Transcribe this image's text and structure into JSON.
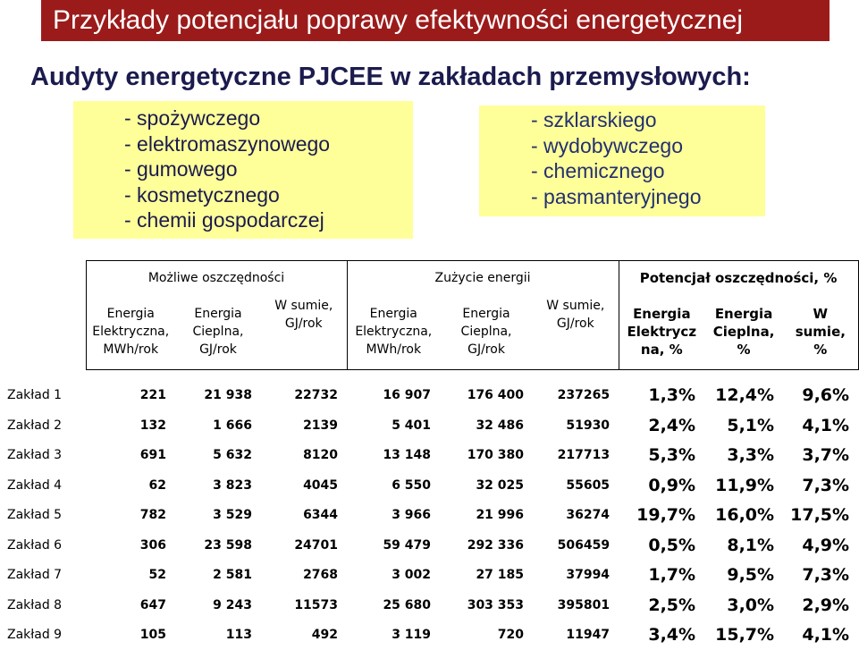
{
  "title": "Przykłady potencjału poprawy efektywności energetycznej",
  "subtitle": "Audyty energetyczne PJCEE w  zakładach przemysłowych:",
  "sectors_left": [
    "- spożywczego",
    "- elektromaszynowego",
    "- gumowego",
    "- kosmetycznego",
    "- chemii gospodarczej"
  ],
  "sectors_right": [
    "- szklarskiego",
    "- wydobywczego",
    "- chemicznego",
    "- pasmanteryjnego"
  ],
  "colors": {
    "title_bg": "#9b1b1b",
    "box_bg": "#ffff99",
    "text_dark": "#1b1b4e"
  },
  "table": {
    "groups": [
      "Możliwe oszczędności",
      "Zużycie energii",
      "Potencjał oszczędności, %"
    ],
    "columns": [
      [
        "Energia",
        "Elektryczna,",
        "MWh/rok"
      ],
      [
        "Energia",
        "Cieplna,",
        "GJ/rok"
      ],
      [
        "W sumie,",
        "GJ/rok"
      ],
      [
        "Energia",
        "Elektryczna,",
        "MWh/rok"
      ],
      [
        "Energia",
        "Cieplna,",
        "GJ/rok"
      ],
      [
        "W sumie,",
        "GJ/rok"
      ],
      [
        "Energia",
        "Elektrycz",
        "na, %"
      ],
      [
        "Energia",
        "Cieplna,",
        "%"
      ],
      [
        "W",
        "sumie,",
        "%"
      ]
    ],
    "rows": [
      {
        "name": "Zakład 1",
        "values": [
          "221",
          "21 938",
          "22732",
          "16 907",
          "176 400",
          "237265",
          "1,3%",
          "12,4%",
          "9,6%"
        ]
      },
      {
        "name": "Zakład 2",
        "values": [
          "132",
          "1 666",
          "2139",
          "5 401",
          "32 486",
          "51930",
          "2,4%",
          "5,1%",
          "4,1%"
        ]
      },
      {
        "name": "Zakład 3",
        "values": [
          "691",
          "5 632",
          "8120",
          "13 148",
          "170 380",
          "217713",
          "5,3%",
          "3,3%",
          "3,7%"
        ]
      },
      {
        "name": "Zakład 4",
        "values": [
          "62",
          "3 823",
          "4045",
          "6 550",
          "32 025",
          "55605",
          "0,9%",
          "11,9%",
          "7,3%"
        ]
      },
      {
        "name": "Zakład 5",
        "values": [
          "782",
          "3 529",
          "6344",
          "3 966",
          "21 996",
          "36274",
          "19,7%",
          "16,0%",
          "17,5%"
        ]
      },
      {
        "name": "Zakład 6",
        "values": [
          "306",
          "23 598",
          "24701",
          "59 479",
          "292 336",
          "506459",
          "0,5%",
          "8,1%",
          "4,9%"
        ]
      },
      {
        "name": "Zakład 7",
        "values": [
          "52",
          "2 581",
          "2768",
          "3 002",
          "27 185",
          "37994",
          "1,7%",
          "9,5%",
          "7,3%"
        ]
      },
      {
        "name": "Zakład 8",
        "values": [
          "647",
          "9 243",
          "11573",
          "25 680",
          "303 353",
          "395801",
          "2,5%",
          "3,0%",
          "2,9%"
        ]
      },
      {
        "name": "Zakład 9",
        "values": [
          "105",
          "113",
          "492",
          "3 119",
          "720",
          "11947",
          "3,4%",
          "15,7%",
          "4,1%"
        ]
      }
    ]
  }
}
